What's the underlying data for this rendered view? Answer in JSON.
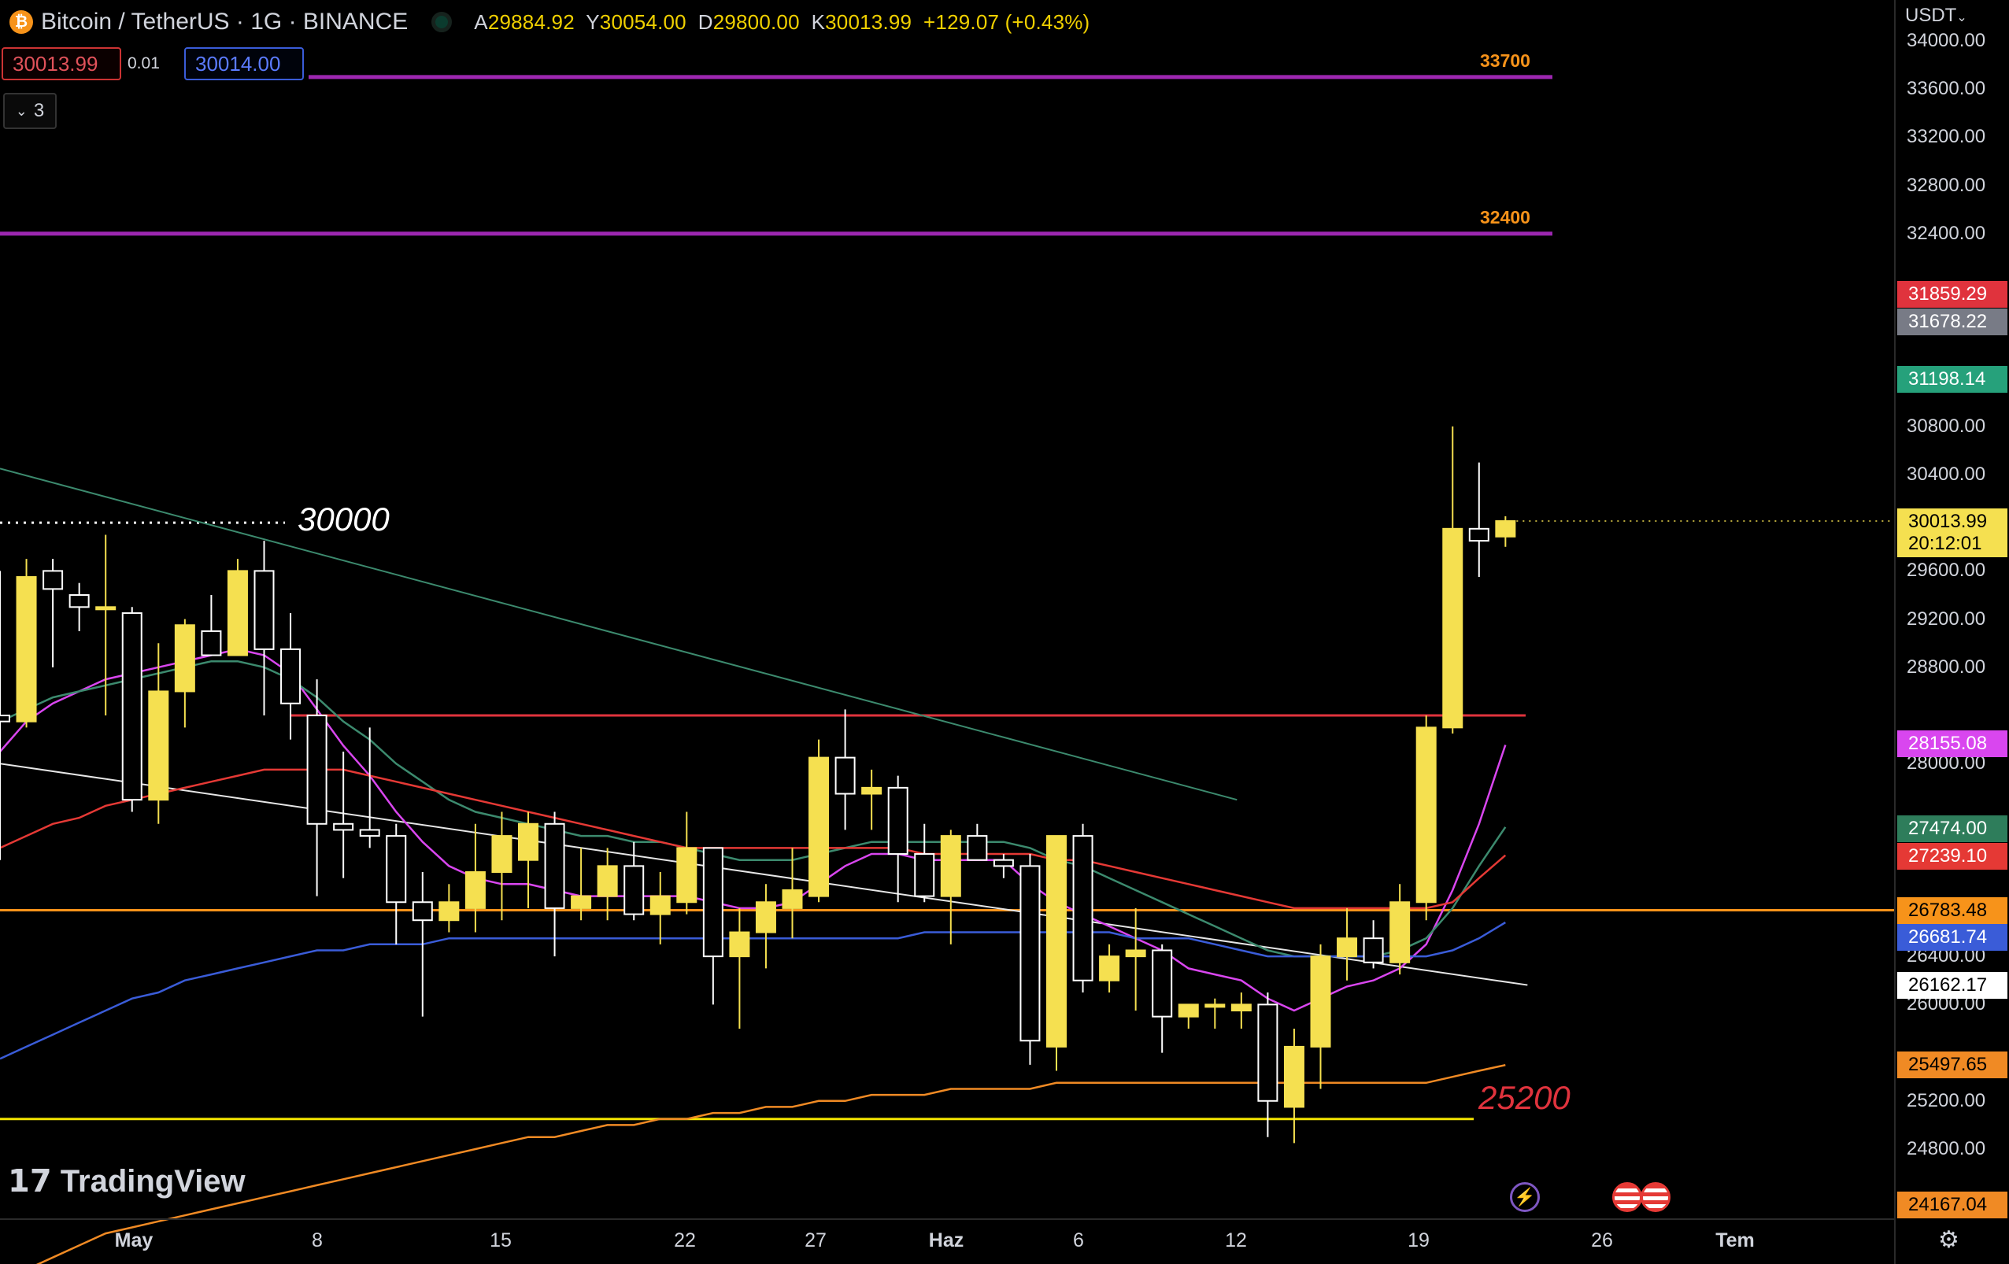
{
  "header": {
    "symbol": "Bitcoin / TetherUS · 1G · BINANCE",
    "coin_icon": "bitcoin-icon",
    "open_label": "A",
    "open": "29884.92",
    "high_label": "Y",
    "high": "30054.00",
    "low_label": "D",
    "low": "29800.00",
    "close_label": "K",
    "close": "30013.99",
    "change": "+129.07 (+0.43%)",
    "sell_price": "30013.99",
    "spread": "0.01",
    "buy_price": "30014.00",
    "collapsed_count": "3"
  },
  "axis": {
    "currency": "USDT"
  },
  "branding": {
    "logo_text": "TradingView"
  },
  "colors": {
    "bg": "#000000",
    "up": "#f5e050",
    "down": "#ffffff",
    "level_purple": "#9c27b0",
    "resistance_red": "#e0333d",
    "support_orange": "#f7931a",
    "support_yellow": "#f2e300",
    "ma_magenta": "#d946ef",
    "ma_red": "#e53935",
    "ma_green": "#3c8a6e",
    "ma_blue": "#3a5cd8",
    "ma_orange": "#f08a24",
    "trend_white": "#e6e6e6"
  },
  "chart_data": {
    "type": "candlestick",
    "y_ticks": [
      34000,
      33600,
      33200,
      32800,
      32400,
      30800,
      30400,
      29600,
      29200,
      28800,
      28000,
      26400,
      26000,
      25200,
      24800
    ],
    "ylim": [
      23900,
      34100
    ],
    "x_tick_labels": [
      "May",
      "8",
      "15",
      "22",
      "27",
      "Haz",
      "6",
      "12",
      "19",
      "26",
      "Tem"
    ],
    "horizontal_levels": [
      {
        "value": 33700,
        "label": "33700",
        "color": "#9c27b0"
      },
      {
        "value": 32400,
        "label": "32400",
        "color": "#9c27b0"
      },
      {
        "value": 28400,
        "label": "",
        "color": "#e0333d"
      },
      {
        "value": 26783.48,
        "label": "",
        "color": "#f7931a"
      },
      {
        "value": 25050,
        "label": "",
        "color": "#f2e300"
      }
    ],
    "annotations": [
      {
        "text": "30000",
        "value": 30000,
        "color": "#ffffff"
      },
      {
        "text": "25200",
        "value": 25200,
        "color": "#e0333d"
      }
    ],
    "price_badges": [
      {
        "value": "31859.29",
        "color": "#e0333d"
      },
      {
        "value": "31678.22",
        "color": "#787b86"
      },
      {
        "value": "31198.14",
        "color": "#26a17b"
      },
      {
        "value": "28155.08",
        "color": "#d946ef"
      },
      {
        "value": "27474.00",
        "color": "#2e7d5b"
      },
      {
        "value": "27239.10",
        "color": "#e53935"
      },
      {
        "value": "26783.48",
        "color": "#f7931a"
      },
      {
        "value": "26681.74",
        "color": "#3a5cd8"
      },
      {
        "value": "26162.17",
        "color": "#ffffff"
      },
      {
        "value": "25497.65",
        "color": "#f08a24"
      },
      {
        "value": "24167.04",
        "color": "#f08a24"
      }
    ],
    "current": {
      "price": "30013.99",
      "countdown": "20:12:01",
      "value": 30013.99
    },
    "candles": [
      [
        28400,
        29600,
        27200,
        28350
      ],
      [
        28350,
        29700,
        28300,
        29550
      ],
      [
        29600,
        29700,
        28800,
        29450
      ],
      [
        29400,
        29500,
        29100,
        29300
      ],
      [
        29300,
        29900,
        28400,
        29300
      ],
      [
        29250,
        29300,
        27600,
        27700
      ],
      [
        27700,
        29000,
        27500,
        28600
      ],
      [
        28600,
        29200,
        28300,
        29150
      ],
      [
        29100,
        29400,
        28900,
        28900
      ],
      [
        28900,
        29700,
        28900,
        29600
      ],
      [
        29600,
        29850,
        28400,
        28950
      ],
      [
        28950,
        29250,
        28200,
        28500
      ],
      [
        28400,
        28700,
        26900,
        27500
      ],
      [
        27500,
        28100,
        27050,
        27450
      ],
      [
        27450,
        28300,
        27300,
        27400
      ],
      [
        27400,
        27500,
        26500,
        26850
      ],
      [
        26850,
        27100,
        25900,
        26700
      ],
      [
        26700,
        27000,
        26600,
        26850
      ],
      [
        26800,
        27500,
        26600,
        27100
      ],
      [
        27100,
        27600,
        26700,
        27400
      ],
      [
        27200,
        27600,
        26800,
        27500
      ],
      [
        27500,
        27600,
        26400,
        26800
      ],
      [
        26800,
        27300,
        26700,
        26900
      ],
      [
        26900,
        27300,
        26700,
        27150
      ],
      [
        27150,
        27350,
        26700,
        26750
      ],
      [
        26750,
        27100,
        26500,
        26900
      ],
      [
        26850,
        27600,
        26750,
        27300
      ],
      [
        27300,
        27300,
        26000,
        26400
      ],
      [
        26400,
        26800,
        25800,
        26600
      ],
      [
        26600,
        27000,
        26300,
        26850
      ],
      [
        26800,
        27300,
        26550,
        26950
      ],
      [
        26900,
        28200,
        26850,
        28050
      ],
      [
        28050,
        28450,
        27450,
        27750
      ],
      [
        27750,
        27950,
        27450,
        27800
      ],
      [
        27800,
        27900,
        26850,
        27250
      ],
      [
        27250,
        27500,
        26850,
        26900
      ],
      [
        26900,
        27450,
        26500,
        27400
      ],
      [
        27400,
        27500,
        27200,
        27200
      ],
      [
        27200,
        27250,
        27050,
        27150
      ],
      [
        27150,
        27250,
        25500,
        25700
      ],
      [
        25650,
        27300,
        25450,
        27400
      ],
      [
        27400,
        27500,
        26100,
        26200
      ],
      [
        26200,
        26500,
        26100,
        26400
      ],
      [
        26400,
        26800,
        25950,
        26450
      ],
      [
        26450,
        26500,
        25600,
        25900
      ],
      [
        25900,
        26000,
        25800,
        26000
      ],
      [
        26000,
        26050,
        25800,
        26000
      ],
      [
        25950,
        26100,
        25800,
        26000
      ],
      [
        26000,
        26100,
        24900,
        25200
      ],
      [
        25150,
        25800,
        24850,
        25650
      ],
      [
        25650,
        26500,
        25300,
        26400
      ],
      [
        26400,
        26800,
        26200,
        26550
      ],
      [
        26550,
        26700,
        26300,
        26350
      ],
      [
        26350,
        27000,
        26250,
        26850
      ],
      [
        26850,
        28400,
        26700,
        28300
      ],
      [
        28300,
        30800,
        28250,
        29950
      ],
      [
        29950,
        30500,
        29550,
        29850
      ],
      [
        29884.92,
        30054,
        29800,
        30013.99
      ]
    ],
    "moving_averages": [
      {
        "name": "",
        "color": "#d946ef",
        "values": [
          28100,
          28350,
          28500,
          28600,
          28700,
          28750,
          28800,
          28850,
          28900,
          28950,
          28900,
          28750,
          28450,
          28150,
          27900,
          27600,
          27350,
          27150,
          27050,
          27000,
          27000,
          26950,
          26900,
          26900,
          26900,
          26900,
          26900,
          26850,
          26800,
          26800,
          26850,
          27000,
          27150,
          27250,
          27250,
          27200,
          27200,
          27200,
          27200,
          27000,
          26850,
          26750,
          26650,
          26550,
          26450,
          26300,
          26250,
          26200,
          26050,
          25950,
          26050,
          26150,
          26200,
          26300,
          26500,
          26950,
          27500,
          28155
        ]
      },
      {
        "name": "",
        "color": "#3c8a6e",
        "values": [
          28350,
          28450,
          28550,
          28600,
          28650,
          28700,
          28750,
          28800,
          28850,
          28850,
          28800,
          28700,
          28550,
          28350,
          28200,
          28000,
          27850,
          27700,
          27600,
          27550,
          27500,
          27450,
          27400,
          27400,
          27350,
          27350,
          27300,
          27250,
          27200,
          27200,
          27200,
          27250,
          27300,
          27350,
          27350,
          27350,
          27350,
          27350,
          27350,
          27300,
          27200,
          27150,
          27050,
          26950,
          26850,
          26750,
          26650,
          26550,
          26450,
          26400,
          26400,
          26400,
          26400,
          26450,
          26550,
          26800,
          27150,
          27474
        ]
      },
      {
        "name": "",
        "color": "#e53935",
        "values": [
          27300,
          27400,
          27500,
          27550,
          27650,
          27700,
          27750,
          27800,
          27850,
          27900,
          27950,
          27950,
          27950,
          27950,
          27900,
          27850,
          27800,
          27750,
          27700,
          27650,
          27600,
          27550,
          27500,
          27450,
          27400,
          27350,
          27300,
          27300,
          27300,
          27300,
          27300,
          27300,
          27300,
          27300,
          27300,
          27250,
          27250,
          27250,
          27250,
          27250,
          27200,
          27200,
          27150,
          27100,
          27050,
          27000,
          26950,
          26900,
          26850,
          26800,
          26800,
          26800,
          26800,
          26800,
          26800,
          26850,
          27050,
          27239
        ]
      },
      {
        "name": "",
        "color": "#3a5cd8",
        "values": [
          25550,
          25650,
          25750,
          25850,
          25950,
          26050,
          26100,
          26200,
          26250,
          26300,
          26350,
          26400,
          26450,
          26450,
          26500,
          26500,
          26500,
          26550,
          26550,
          26550,
          26550,
          26550,
          26550,
          26550,
          26550,
          26550,
          26550,
          26550,
          26550,
          26550,
          26550,
          26550,
          26550,
          26550,
          26550,
          26600,
          26600,
          26600,
          26600,
          26600,
          26600,
          26600,
          26600,
          26550,
          26550,
          26550,
          26500,
          26450,
          26400,
          26400,
          26400,
          26400,
          26400,
          26400,
          26400,
          26450,
          26550,
          26682
        ]
      },
      {
        "name": "",
        "color": "#f08a24",
        "values": [
          23700,
          23800,
          23900,
          24000,
          24100,
          24150,
          24200,
          24250,
          24300,
          24350,
          24400,
          24450,
          24500,
          24550,
          24600,
          24650,
          24700,
          24750,
          24800,
          24850,
          24900,
          24900,
          24950,
          25000,
          25000,
          25050,
          25050,
          25100,
          25100,
          25150,
          25150,
          25200,
          25200,
          25250,
          25250,
          25250,
          25300,
          25300,
          25300,
          25300,
          25350,
          25350,
          25350,
          25350,
          25350,
          25350,
          25350,
          25350,
          25350,
          25350,
          25350,
          25350,
          25350,
          25350,
          25350,
          25400,
          25450,
          25498
        ]
      }
    ],
    "trendlines": [
      {
        "color": "#3c8a6e",
        "from": [
          0,
          30450
        ],
        "to": [
          46,
          27700
        ]
      },
      {
        "color": "#e6e6e6",
        "from": [
          0,
          28000
        ],
        "to": [
          57,
          26162
        ]
      }
    ]
  }
}
